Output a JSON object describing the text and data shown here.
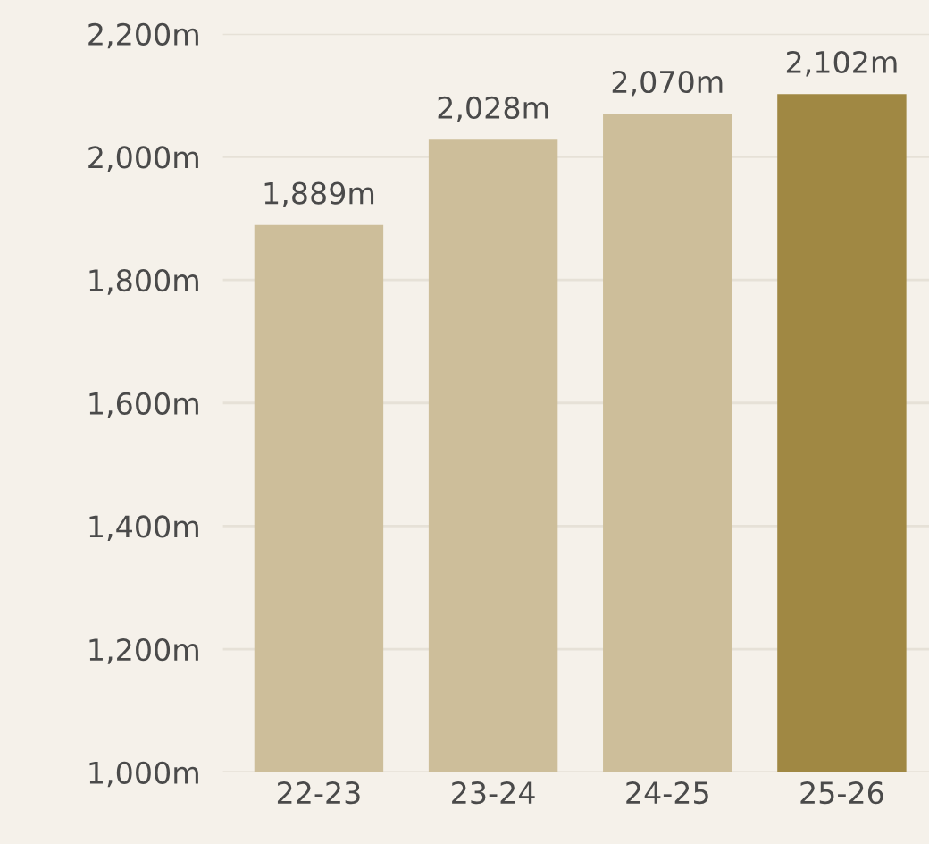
{
  "chart_data": {
    "type": "bar",
    "categories": [
      "22-23",
      "23-24",
      "24-25",
      "25-26"
    ],
    "values": [
      1889,
      2028,
      2070,
      2102
    ],
    "colors": [
      "#cdbe9a",
      "#cdbe9a",
      "#cdbe9a",
      "#a08843"
    ],
    "value_labels": [
      "1,889m",
      "2,028m",
      "2,070m",
      "2,102m"
    ],
    "ylim": [
      1000,
      2200
    ],
    "yticks": [
      {
        "value": 1000,
        "label": "1,000m"
      },
      {
        "value": 1200,
        "label": "1,200m"
      },
      {
        "value": 1400,
        "label": "1,400m"
      },
      {
        "value": 1600,
        "label": "1,600m"
      },
      {
        "value": 1800,
        "label": "1,800m"
      },
      {
        "value": 2000,
        "label": "2,000m"
      },
      {
        "value": 2200,
        "label": "2,200m"
      }
    ],
    "grid": "y"
  }
}
